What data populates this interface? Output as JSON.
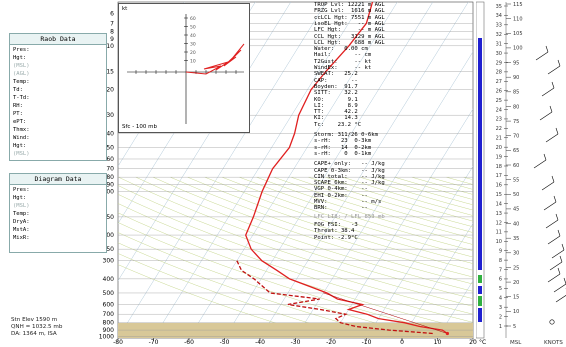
{
  "raob_data": {
    "title": "Raob Data",
    "fields": [
      "Pres:",
      "Hgt:",
      "(MSL)",
      "(AGL)",
      "Temp:",
      "Td:",
      "T-Td:",
      "RH:",
      "PT:",
      "ePT:",
      "Thmx:",
      "Wind:",
      "Hgt:",
      "(MSL)"
    ]
  },
  "diagram_data": {
    "title": "Diagram Data",
    "fields": [
      "Pres:",
      "Hgt:",
      "(MSL)",
      "Temp:",
      "DryA:",
      "MstA:",
      "MixR:"
    ]
  },
  "station": {
    "elevation": "Stn Elev 1590 m",
    "qnh": "QNH = 1032.5 mb",
    "density_altitude": "DA: 1364 m, ISA"
  },
  "hodograph": {
    "top_label": "kt",
    "range_label": "Sfc - 100 mb",
    "ticks": [
      "60",
      "50",
      "40",
      "30",
      "20",
      "10"
    ]
  },
  "parameters": {
    "group1": [
      "TROP Lvl: 12221 m AGL",
      "FRZG Lvl:  1616 m AGL",
      "ccLCL Hgt: 7551 m AGL",
      "isoEL Hgt:   -- m AGL",
      "LFC Hgt:     -- m AGL",
      "CCL Hgt:   3129 m AGL",
      "LCL Hgt:    688 m AGL",
      "Water:   0.00 cm",
      "Hail:       -- cm",
      "T2Gust:     -- kt",
      "WindEx:     -- kt",
      "SWEAT:   25.2",
      "CAP:       --",
      "Boyden:  91.7",
      "SITT:    32.2",
      "KO:       9.1",
      "LI:       8.9",
      "TT:      42.2",
      "KI:      14.3",
      "Tc:    23.2 °C"
    ],
    "storm": [
      "Storm: 311/26 0-6km",
      "s-rH:   23  0-3km",
      "s-rH:   14  0-2km",
      "s-rH:    0  0-1km"
    ],
    "cape": [
      "CAPE+ only:   -- J/kg",
      "CAPE 0-3km:   -- J/kg",
      "CIN total:    -- J/kg",
      "SCAPE 6km:    -- J/kg",
      "VGP 0-4km:    --",
      "EHI 0-2km:    --",
      "MVV:          -- m/s",
      "BRN:          --"
    ],
    "lfc_note": "LFC LI8: / LFL 853 mb",
    "fog": [
      "FOG FSI:   -3",
      "Threat: 38.4",
      "Point: -2.9°C"
    ]
  },
  "chart_data": [
    {
      "type": "line",
      "name": "skew-t",
      "pressure_ticks": [
        6,
        7,
        8,
        9,
        10,
        15,
        20,
        30,
        40,
        50,
        60,
        70,
        80,
        90,
        100,
        150,
        200,
        250,
        300,
        400,
        500,
        600,
        700,
        800,
        900,
        1000
      ],
      "temperature_ticks": [
        -80,
        -70,
        -60,
        -50,
        -40,
        -30,
        -20,
        -10,
        0,
        10,
        20
      ],
      "x_unit": "°C",
      "xlim": [
        -80,
        20
      ],
      "series": [
        {
          "pressure": [
            5,
            7,
            10,
            15,
            20,
            30,
            40,
            50,
            70,
            100,
            150,
            200,
            250,
            300,
            350,
            400,
            500,
            550,
            600,
            650,
            700,
            750,
            800,
            850,
            900,
            950
          ],
          "temperature": [
            -67,
            -65,
            -66,
            -68,
            -69,
            -68,
            -66,
            -65,
            -66,
            -65,
            -63,
            -62,
            -58,
            -53,
            -47,
            -42,
            -29,
            -25,
            -17,
            -20,
            -14,
            -10,
            -2,
            3,
            10,
            12
          ]
        },
        {
          "pressure": [
            300,
            350,
            400,
            500,
            550,
            600,
            650,
            700,
            750,
            800,
            850,
            900,
            950
          ],
          "temperature": [
            -60,
            -57,
            -52,
            -45,
            -30,
            -38,
            -28,
            -20,
            -22,
            -20,
            -15,
            -5,
            8
          ]
        }
      ]
    },
    {
      "type": "line",
      "name": "scale-strip",
      "axis_values": [
        1,
        2,
        3,
        4,
        5,
        6,
        7,
        8,
        9,
        10,
        11,
        12,
        13,
        14,
        15,
        16,
        17,
        18,
        19,
        20,
        21,
        22,
        23,
        24,
        25,
        26,
        27,
        28,
        29,
        30,
        31,
        32,
        33,
        34,
        35
      ],
      "labels": [
        "35",
        "34",
        "33",
        "32",
        "31",
        "30",
        "29",
        "28",
        "27",
        "26",
        "25",
        "24",
        "23",
        "22",
        "21",
        "20",
        "19",
        "18",
        "17",
        "16",
        "15",
        "14",
        "13",
        "12",
        "11",
        "10",
        "9",
        "8",
        "7",
        "6",
        "5",
        "4",
        "3",
        "2",
        "1"
      ],
      "right_labels": [
        "115",
        "110",
        "105",
        "100",
        "95",
        "90",
        "85",
        "80",
        "75",
        "70",
        "65",
        "60",
        "55",
        "50",
        "45",
        "40",
        "35",
        "30",
        "25",
        "20",
        "15",
        "10",
        "5"
      ],
      "bottom_labels": [
        "MSL",
        "KNOTS"
      ]
    }
  ],
  "colors": {
    "temperature": "#e02020",
    "dewpoint": "#c01010",
    "isotherm": "#b0c8d8",
    "dry_adiabat": "#c8d890",
    "ground": "#d8c898",
    "cloud_bar": "#2020d0",
    "accent_green": "#30b040"
  }
}
